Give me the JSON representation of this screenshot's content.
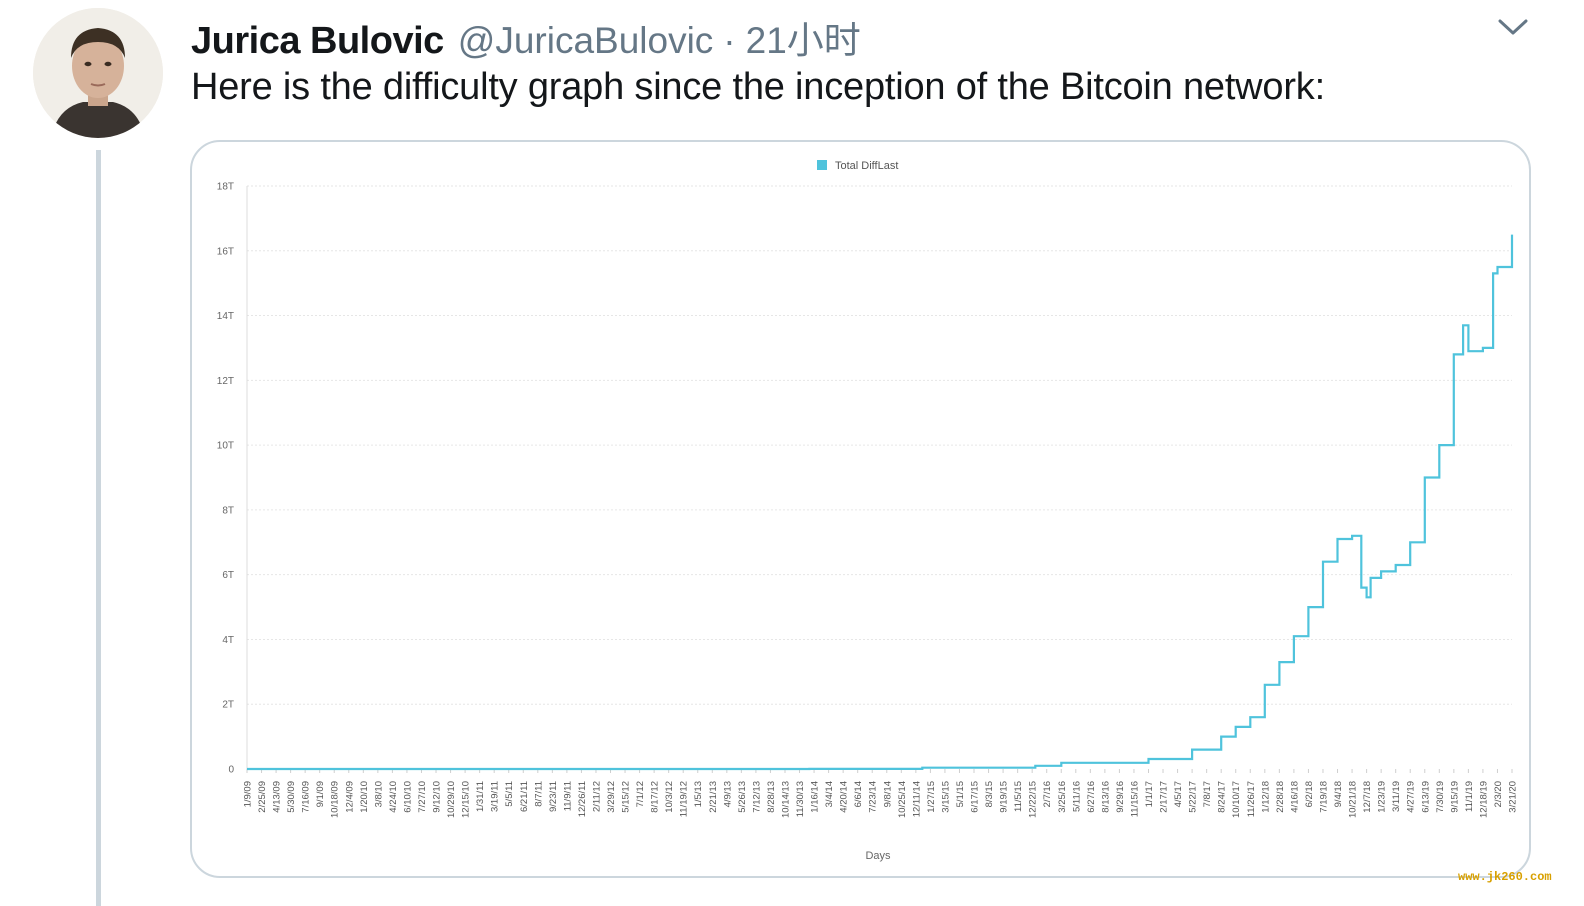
{
  "tweet": {
    "author_name": "Jurica Bulovic",
    "handle": "@JuricaBulovic",
    "separator": "·",
    "time": "21小时",
    "text": "Here is the difficulty graph since the inception of the Bitcoin network:"
  },
  "icons": {
    "more": "chevron-down-icon",
    "avatar": "avatar"
  },
  "colors": {
    "series": "#4fc3dc",
    "text": "#14171a",
    "muted": "#657786"
  },
  "watermark": "www.jk260.com",
  "chart_data": {
    "type": "line",
    "title": "",
    "legend": [
      "Total DiffLast"
    ],
    "legend_position": "top-center",
    "xlabel": "Days",
    "ylabel": "",
    "ylim": [
      0,
      18
    ],
    "y_unit": "T",
    "y_ticks": [
      0,
      2,
      4,
      6,
      8,
      10,
      12,
      14,
      16,
      18
    ],
    "y_tick_labels": [
      "0",
      "2T",
      "4T",
      "6T",
      "8T",
      "10T",
      "12T",
      "14T",
      "16T",
      "18T"
    ],
    "grid": true,
    "x_tick_labels": [
      "1/9/09",
      "2/25/09",
      "4/13/09",
      "5/30/09",
      "7/16/09",
      "9/1/09",
      "10/18/09",
      "12/4/09",
      "1/20/10",
      "3/8/10",
      "4/24/10",
      "6/10/10",
      "7/27/10",
      "9/12/10",
      "10/29/10",
      "12/15/10",
      "1/31/11",
      "3/19/11",
      "5/5/11",
      "6/21/11",
      "8/7/11",
      "9/23/11",
      "11/9/11",
      "12/26/11",
      "2/11/12",
      "3/29/12",
      "5/15/12",
      "7/1/12",
      "8/17/12",
      "10/3/12",
      "11/19/12",
      "1/5/13",
      "2/21/13",
      "4/9/13",
      "5/26/13",
      "7/12/13",
      "8/28/13",
      "10/14/13",
      "11/30/13",
      "1/16/14",
      "3/4/14",
      "4/20/14",
      "6/6/14",
      "7/23/14",
      "9/8/14",
      "10/25/14",
      "12/11/14",
      "1/27/15",
      "3/15/15",
      "5/1/15",
      "6/17/15",
      "8/3/15",
      "9/19/15",
      "11/5/15",
      "12/22/15",
      "2/7/16",
      "3/25/16",
      "5/11/16",
      "6/27/16",
      "8/13/16",
      "9/29/16",
      "11/15/16",
      "1/1/17",
      "2/17/17",
      "4/5/17",
      "5/22/17",
      "7/8/17",
      "8/24/17",
      "10/10/17",
      "11/26/17",
      "1/12/18",
      "2/28/18",
      "4/16/18",
      "6/2/18",
      "7/19/18",
      "9/4/18",
      "10/21/18",
      "12/7/18",
      "1/23/19",
      "3/11/19",
      "4/27/19",
      "6/13/19",
      "7/30/19",
      "9/15/19",
      "11/1/19",
      "12/18/19",
      "2/3/20",
      "3/21/20"
    ],
    "series": [
      {
        "name": "Total DiffLast",
        "color": "#4fc3dc",
        "x": [
          "1/9/09",
          "1/1/14",
          "1/1/15",
          "1/1/16",
          "3/25/16",
          "1/1/17",
          "5/22/17",
          "8/24/17",
          "10/10/17",
          "11/26/17",
          "1/12/18",
          "2/28/18",
          "4/16/18",
          "6/2/18",
          "7/19/18",
          "9/4/18",
          "10/21/18",
          "11/20/18",
          "12/7/18",
          "12/20/18",
          "1/23/19",
          "3/11/19",
          "4/27/19",
          "6/13/19",
          "7/30/19",
          "9/15/19",
          "10/15/19",
          "11/1/19",
          "12/18/19",
          "1/20/20",
          "2/3/20",
          "3/5/20",
          "3/21/20"
        ],
        "values": [
          0,
          0.002,
          0.04,
          0.1,
          0.19,
          0.31,
          0.6,
          1.0,
          1.3,
          1.6,
          2.6,
          3.3,
          4.1,
          5.0,
          6.4,
          7.1,
          7.2,
          5.6,
          5.3,
          5.9,
          6.1,
          6.3,
          7.0,
          9.0,
          10.0,
          12.8,
          13.7,
          12.9,
          13.0,
          15.3,
          15.5,
          15.5,
          16.5
        ]
      }
    ]
  }
}
